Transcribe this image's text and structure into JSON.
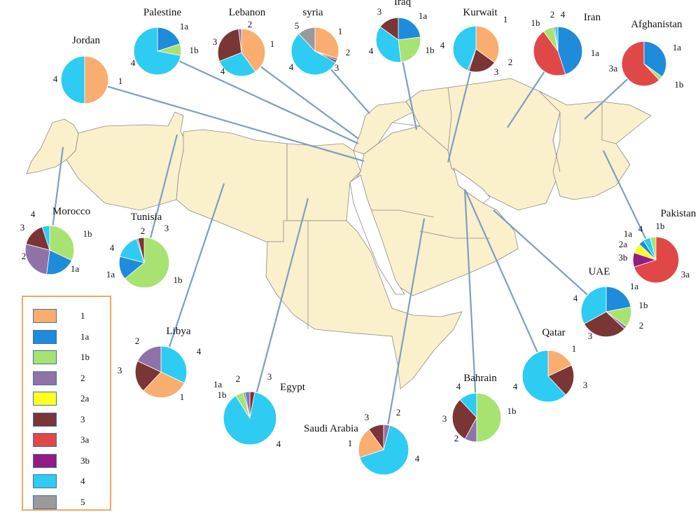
{
  "legend": [
    {
      "key": "1",
      "label": "1",
      "color": "#F9AD6E"
    },
    {
      "key": "1a",
      "label": "1a",
      "color": "#1E8BDB"
    },
    {
      "key": "1b",
      "label": "1b",
      "color": "#A8E270"
    },
    {
      "key": "2",
      "label": "2",
      "color": "#8F73A8"
    },
    {
      "key": "2a",
      "label": "2a",
      "color": "#FFFF22"
    },
    {
      "key": "3",
      "label": "3",
      "color": "#7A3535"
    },
    {
      "key": "3a",
      "label": "3a",
      "color": "#E04848"
    },
    {
      "key": "3b",
      "label": "3b",
      "color": "#951A82"
    },
    {
      "key": "4",
      "label": "4",
      "color": "#2ECBF3"
    },
    {
      "key": "5",
      "label": "5",
      "color": "#9A9A9A"
    }
  ],
  "chart_data": {
    "type": "pie",
    "countries": [
      {
        "name": "Jordan",
        "slices": [
          {
            "key": "1",
            "value": 50
          },
          {
            "key": "4",
            "value": 50
          }
        ]
      },
      {
        "name": "Palestine",
        "slices": [
          {
            "key": "1a",
            "value": 20
          },
          {
            "key": "1b",
            "value": 8
          },
          {
            "key": "4",
            "value": 72
          }
        ]
      },
      {
        "name": "Lebanon",
        "slices": [
          {
            "key": "1",
            "value": 40
          },
          {
            "key": "4",
            "value": 29
          },
          {
            "key": "3",
            "value": 29
          },
          {
            "key": "2",
            "value": 2
          }
        ]
      },
      {
        "name": "syria",
        "slices": [
          {
            "key": "1",
            "value": 30
          },
          {
            "key": "2",
            "value": 1.5
          },
          {
            "key": "3",
            "value": 1.5
          },
          {
            "key": "4",
            "value": 55
          },
          {
            "key": "5",
            "value": 12
          }
        ]
      },
      {
        "name": "Iraq",
        "slices": [
          {
            "key": "1a",
            "value": 23
          },
          {
            "key": "1b",
            "value": 25
          },
          {
            "key": "4",
            "value": 37
          },
          {
            "key": "3",
            "value": 15
          }
        ]
      },
      {
        "name": "Kurwait",
        "slices": [
          {
            "key": "1",
            "value": 35
          },
          {
            "key": "3",
            "value": 20
          },
          {
            "key": "2",
            "value": 1
          },
          {
            "key": "4",
            "value": 44
          }
        ]
      },
      {
        "name": "Iran",
        "slices": [
          {
            "key": "1a",
            "value": 45
          },
          {
            "key": "3a",
            "value": 45
          },
          {
            "key": "1b",
            "value": 7
          },
          {
            "key": "2",
            "value": 1
          },
          {
            "key": "4",
            "value": 2
          }
        ]
      },
      {
        "name": "Afghanistan",
        "slices": [
          {
            "key": "1a",
            "value": 35
          },
          {
            "key": "1b",
            "value": 3
          },
          {
            "key": "3a",
            "value": 62
          }
        ]
      },
      {
        "name": "Morocco",
        "slices": [
          {
            "key": "1b",
            "value": 32
          },
          {
            "key": "1a",
            "value": 20
          },
          {
            "key": "2",
            "value": 27
          },
          {
            "key": "3",
            "value": 16
          },
          {
            "key": "4",
            "value": 5
          }
        ]
      },
      {
        "name": "Tunisia",
        "slices": [
          {
            "key": "1b",
            "value": 64
          },
          {
            "key": "1a",
            "value": 15
          },
          {
            "key": "4",
            "value": 16
          },
          {
            "key": "2",
            "value": 1
          },
          {
            "key": "3",
            "value": 4
          }
        ]
      },
      {
        "name": "Pakistan",
        "slices": [
          {
            "key": "3a",
            "value": 70
          },
          {
            "key": "3b",
            "value": 10
          },
          {
            "key": "2a",
            "value": 7
          },
          {
            "key": "1a",
            "value": 4
          },
          {
            "key": "4",
            "value": 5
          },
          {
            "key": "1b",
            "value": 4
          }
        ]
      },
      {
        "name": "UAE",
        "slices": [
          {
            "key": "1a",
            "value": 22
          },
          {
            "key": "1b",
            "value": 13
          },
          {
            "key": "2",
            "value": 2
          },
          {
            "key": "3",
            "value": 30
          },
          {
            "key": "4",
            "value": 33
          }
        ]
      },
      {
        "name": "Libya",
        "slices": [
          {
            "key": "4",
            "value": 32
          },
          {
            "key": "1",
            "value": 30
          },
          {
            "key": "3",
            "value": 20
          },
          {
            "key": "2",
            "value": 18
          }
        ]
      },
      {
        "name": "Egypt",
        "slices": [
          {
            "key": "3",
            "value": 3
          },
          {
            "key": "4",
            "value": 88
          },
          {
            "key": "1b",
            "value": 5
          },
          {
            "key": "1a",
            "value": 1
          },
          {
            "key": "2",
            "value": 3
          }
        ]
      },
      {
        "name": "Qatar",
        "slices": [
          {
            "key": "1",
            "value": 18
          },
          {
            "key": "3",
            "value": 20
          },
          {
            "key": "4",
            "value": 62
          }
        ]
      },
      {
        "name": "Saudi Arabia",
        "slices": [
          {
            "key": "2",
            "value": 4
          },
          {
            "key": "4",
            "value": 66
          },
          {
            "key": "1",
            "value": 20
          },
          {
            "key": "3",
            "value": 10
          }
        ]
      },
      {
        "name": "Bahrain",
        "slices": [
          {
            "key": "1b",
            "value": 50
          },
          {
            "key": "2",
            "value": 8
          },
          {
            "key": "3",
            "value": 30
          },
          {
            "key": "4",
            "value": 12
          }
        ]
      }
    ]
  }
}
